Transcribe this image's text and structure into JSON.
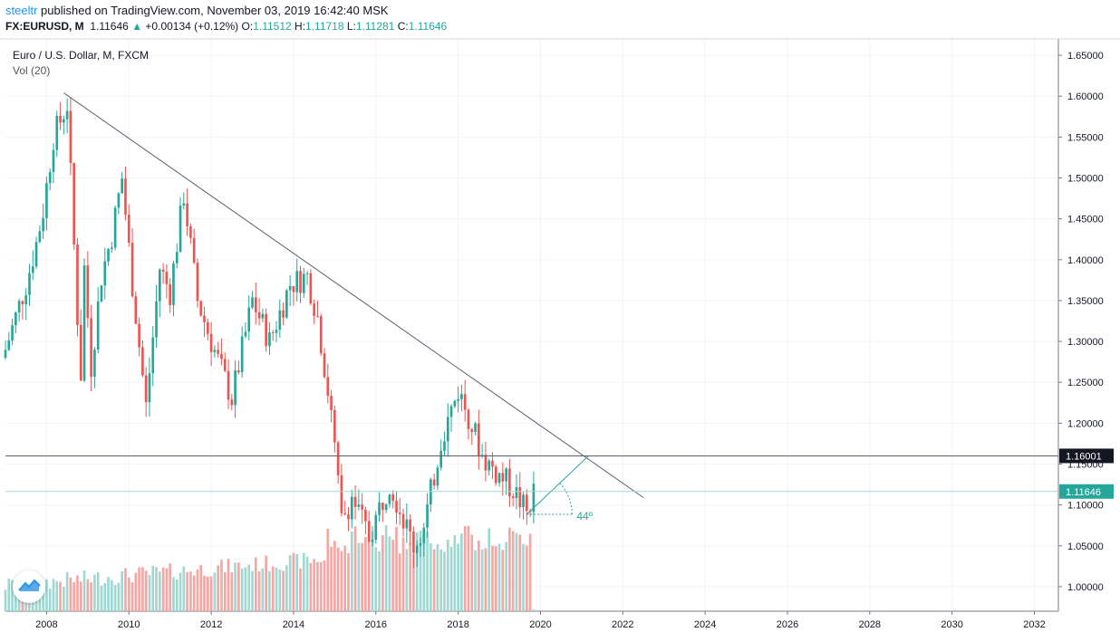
{
  "header": {
    "author": "steeltr",
    "published": "published on TradingView.com, November 03, 2019 16:42:40 MSK",
    "symbol": "FX:EURUSD, M",
    "last": "1.11646",
    "change": "+0.00134 (+0.12%)",
    "o_label": "O:",
    "o_value": "1.11512",
    "h_label": "H:",
    "h_value": "1.11718",
    "l_label": "L:",
    "l_value": "1.11281",
    "c_label": "C:",
    "c_value": "1.11646"
  },
  "legend": {
    "title": "Euro / U.S. Dollar, M, FXCM",
    "volume": "Vol (20)"
  },
  "colors": {
    "up": "#26a69a",
    "down": "#ef5350",
    "vol_up": "#9fd7d1",
    "vol_down": "#f4a6a3",
    "grid": "#f0f3fa",
    "trendline": "#5d606b",
    "price_line": "#9fd7d1"
  },
  "chart_data": {
    "type": "candlestick",
    "y_ticks": [
      "1.65000",
      "1.60000",
      "1.55000",
      "1.50000",
      "1.45000",
      "1.40000",
      "1.35000",
      "1.30000",
      "1.25000",
      "1.20000",
      "1.15000",
      "1.10000",
      "1.05000",
      "1.00000"
    ],
    "x_ticks": [
      "2008",
      "2010",
      "2012",
      "2014",
      "2016",
      "2018",
      "2020",
      "2022",
      "2024",
      "2026",
      "2028",
      "2030",
      "2032"
    ],
    "ylim": [
      0.97,
      1.67
    ],
    "xlim": [
      "2007-01",
      "2032-08"
    ],
    "grid": true,
    "price_labels": [
      {
        "value": "1.16001",
        "style": "horizontal-line"
      },
      {
        "value": "1.11646",
        "style": "last-price"
      }
    ],
    "annotations": [
      {
        "type": "trendline",
        "from": {
          "date": "2008-06",
          "price": 1.604
        },
        "to": {
          "date": "2022-07",
          "price": 1.109
        }
      },
      {
        "type": "horizontal-line",
        "price": 1.16001
      },
      {
        "type": "angle",
        "label": "44º",
        "from": {
          "date": "2019-09",
          "price": 1.0885
        },
        "to": {
          "date": "2021-03",
          "price": 1.16
        }
      }
    ],
    "anchors": [
      {
        "d": "2007-01",
        "p": 1.29
      },
      {
        "d": "2007-04",
        "p": 1.33
      },
      {
        "d": "2007-07",
        "p": 1.37
      },
      {
        "d": "2007-10",
        "p": 1.42
      },
      {
        "d": "2007-12",
        "p": 1.46
      },
      {
        "d": "2008-03",
        "p": 1.55
      },
      {
        "d": "2008-07",
        "p": 1.59
      },
      {
        "d": "2008-10",
        "p": 1.33
      },
      {
        "d": "2008-11",
        "p": 1.26
      },
      {
        "d": "2008-12",
        "p": 1.39
      },
      {
        "d": "2009-02",
        "p": 1.27
      },
      {
        "d": "2009-05",
        "p": 1.38
      },
      {
        "d": "2009-08",
        "p": 1.43
      },
      {
        "d": "2009-11",
        "p": 1.5
      },
      {
        "d": "2010-02",
        "p": 1.37
      },
      {
        "d": "2010-06",
        "p": 1.22
      },
      {
        "d": "2010-10",
        "p": 1.39
      },
      {
        "d": "2011-01",
        "p": 1.36
      },
      {
        "d": "2011-05",
        "p": 1.48
      },
      {
        "d": "2011-09",
        "p": 1.35
      },
      {
        "d": "2012-01",
        "p": 1.3
      },
      {
        "d": "2012-07",
        "p": 1.23
      },
      {
        "d": "2013-01",
        "p": 1.35
      },
      {
        "d": "2013-06",
        "p": 1.3
      },
      {
        "d": "2013-12",
        "p": 1.37
      },
      {
        "d": "2014-05",
        "p": 1.38
      },
      {
        "d": "2014-08",
        "p": 1.33
      },
      {
        "d": "2014-12",
        "p": 1.21
      },
      {
        "d": "2015-03",
        "p": 1.08
      },
      {
        "d": "2015-06",
        "p": 1.11
      },
      {
        "d": "2015-11",
        "p": 1.06
      },
      {
        "d": "2016-05",
        "p": 1.13
      },
      {
        "d": "2016-12",
        "p": 1.05
      },
      {
        "d": "2017-03",
        "p": 1.07
      },
      {
        "d": "2017-08",
        "p": 1.18
      },
      {
        "d": "2018-01",
        "p": 1.24
      },
      {
        "d": "2018-04",
        "p": 1.21
      },
      {
        "d": "2018-08",
        "p": 1.16
      },
      {
        "d": "2018-12",
        "p": 1.14
      },
      {
        "d": "2019-05",
        "p": 1.12
      },
      {
        "d": "2019-09",
        "p": 1.09
      },
      {
        "d": "2019-11",
        "p": 1.1165
      }
    ]
  }
}
